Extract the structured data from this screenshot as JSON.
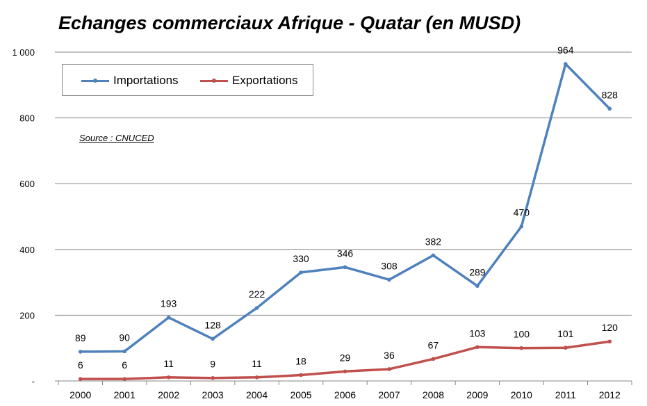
{
  "chart_data": {
    "type": "line",
    "title": "Echanges commerciaux Afrique - Quatar (en MUSD)",
    "annotation": "Source : CNUCED",
    "xlabel": "",
    "ylabel": "",
    "categories": [
      "2000",
      "2001",
      "2002",
      "2003",
      "2004",
      "2005",
      "2006",
      "2007",
      "2008",
      "2009",
      "2010",
      "2011",
      "2012"
    ],
    "ylim": [
      0,
      1000
    ],
    "yticks": [
      0,
      200,
      400,
      600,
      800,
      1000
    ],
    "ytick_labels": [
      "-",
      "200",
      "400",
      "600",
      "800",
      "1 000"
    ],
    "grid": true,
    "legend_position": "top-left",
    "series": [
      {
        "name": "Importations",
        "color": "#4f81bd",
        "values": [
          89,
          90,
          193,
          128,
          222,
          330,
          346,
          308,
          382,
          289,
          470,
          964,
          828
        ]
      },
      {
        "name": "Exportations",
        "color": "#c0504d",
        "values": [
          6,
          6,
          11,
          9,
          11,
          18,
          29,
          36,
          67,
          103,
          100,
          101,
          120
        ]
      }
    ]
  }
}
